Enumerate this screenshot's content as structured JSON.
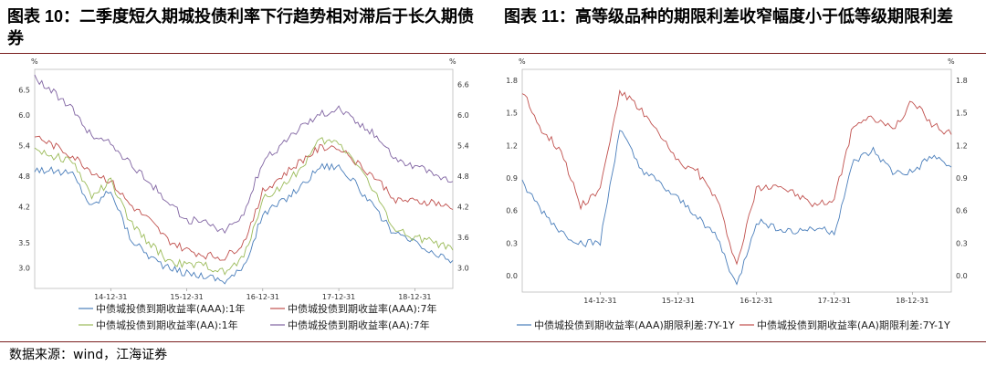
{
  "titles": {
    "left": "图表 10：二季度短久期城投债利率下行趋势相对滞后于长久期债券",
    "right": "图表 11：高等级品种的期限利差收窄幅度小于低等级期限利差"
  },
  "source": "数据来源：wind，江海证券",
  "chart_data": [
    {
      "type": "line",
      "unit_left": "%",
      "unit_right": "%",
      "ylim": [
        2.6,
        6.9
      ],
      "yticks": [
        "3.0",
        "3.5",
        "4.2",
        "4.8",
        "5.4",
        "6.0",
        "6.5"
      ],
      "yticks_right": [
        "3.0",
        "3.6",
        "4.2",
        "4.8",
        "5.4",
        "6.0",
        "6.6"
      ],
      "x_tick_labels": [
        "14-12-31",
        "15-12-31",
        "16-12-31",
        "17-12-31",
        "18-12-31"
      ],
      "x": [
        2014.0,
        2014.25,
        2014.5,
        2014.75,
        2015.0,
        2015.25,
        2015.5,
        2015.75,
        2016.0,
        2016.25,
        2016.5,
        2016.75,
        2017.0,
        2017.25,
        2017.5,
        2017.75,
        2018.0,
        2018.25,
        2018.5,
        2018.75,
        2019.0,
        2019.25,
        2019.5
      ],
      "series": [
        {
          "name": "中债城投债到期收益率(AAA):1年",
          "color": "#4a7ebb",
          "values": [
            4.95,
            4.9,
            4.85,
            4.2,
            4.55,
            3.6,
            3.25,
            3.0,
            2.9,
            2.85,
            2.75,
            3.0,
            4.05,
            4.3,
            4.6,
            5.0,
            5.0,
            4.6,
            4.1,
            3.65,
            3.5,
            3.25,
            3.15
          ]
        },
        {
          "name": "中债城投债到期收益率(AAA):7年",
          "color": "#c0504d",
          "values": [
            5.6,
            5.4,
            5.2,
            4.9,
            4.7,
            4.25,
            3.95,
            3.55,
            3.35,
            3.25,
            3.2,
            3.5,
            4.5,
            4.8,
            5.1,
            5.35,
            5.4,
            5.05,
            4.75,
            4.35,
            4.3,
            4.3,
            4.15
          ]
        },
        {
          "name": "中债城投债到期收益率(AA):1年",
          "color": "#9bbb59",
          "values": [
            5.35,
            5.2,
            5.1,
            4.4,
            4.7,
            3.9,
            3.5,
            3.15,
            3.05,
            3.05,
            2.9,
            3.2,
            4.35,
            4.6,
            4.95,
            5.5,
            5.45,
            5.05,
            4.4,
            3.75,
            3.6,
            3.5,
            3.35
          ]
        },
        {
          "name": "中债城投债到期收益率(AA):7年",
          "color": "#8064a2",
          "values": [
            6.75,
            6.45,
            6.1,
            5.6,
            5.45,
            5.05,
            4.7,
            4.3,
            3.95,
            3.9,
            3.7,
            4.05,
            5.1,
            5.4,
            5.8,
            6.0,
            6.15,
            5.85,
            5.6,
            5.15,
            5.0,
            4.85,
            4.7
          ]
        }
      ]
    },
    {
      "type": "line",
      "unit_left": "%",
      "unit_right": "%",
      "ylim": [
        -0.15,
        1.9
      ],
      "yticks": [
        "0.0",
        "0.3",
        "0.6",
        "0.9",
        "1.2",
        "1.5",
        "1.8"
      ],
      "yticks_right": [
        "0.0",
        "0.3",
        "0.6",
        "0.9",
        "1.2",
        "1.5",
        "1.8"
      ],
      "x_tick_labels": [
        "14-12-31",
        "15-12-31",
        "16-12-31",
        "17-12-31",
        "18-12-31"
      ],
      "x": [
        2014.0,
        2014.25,
        2014.5,
        2014.75,
        2015.0,
        2015.25,
        2015.5,
        2015.75,
        2016.0,
        2016.25,
        2016.5,
        2016.75,
        2017.0,
        2017.25,
        2017.5,
        2017.75,
        2018.0,
        2018.25,
        2018.5,
        2018.75,
        2019.0,
        2019.25,
        2019.5
      ],
      "series": [
        {
          "name": "中债城投债到期收益率(AAA)期限利差:7Y-1Y",
          "color": "#4a7ebb",
          "values": [
            0.85,
            0.6,
            0.4,
            0.3,
            0.3,
            1.35,
            1.0,
            0.85,
            0.7,
            0.55,
            0.35,
            -0.1,
            0.5,
            0.45,
            0.4,
            0.45,
            0.4,
            1.05,
            1.15,
            0.95,
            0.95,
            1.1,
            1.0
          ]
        },
        {
          "name": "中债城投债到期收益率(AA)期限利差:7Y-1Y",
          "color": "#c0504d",
          "values": [
            1.7,
            1.35,
            1.15,
            0.65,
            0.8,
            1.7,
            1.55,
            1.3,
            1.05,
            0.95,
            0.7,
            0.1,
            0.8,
            0.85,
            0.75,
            0.65,
            0.7,
            1.4,
            1.45,
            1.35,
            1.6,
            1.4,
            1.3
          ]
        }
      ]
    }
  ]
}
